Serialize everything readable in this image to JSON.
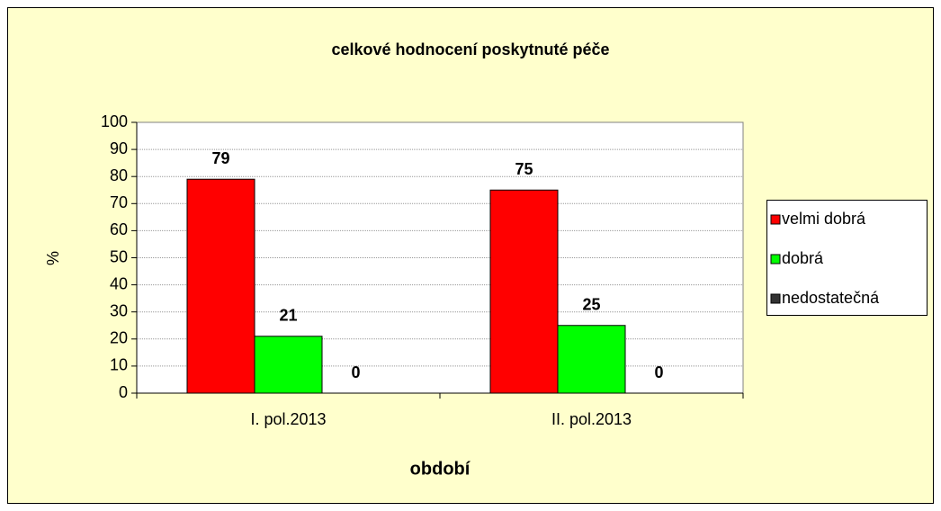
{
  "chart_data": {
    "type": "bar",
    "title": "celkové hodnocení poskytnuté péče",
    "x_label": "období",
    "y_label": "%",
    "categories": [
      "I. pol.2013",
      "II. pol.2013"
    ],
    "series": [
      {
        "name": "velmi dobrá",
        "color": "#ff0000",
        "values": [
          79,
          75
        ]
      },
      {
        "name": "dobrá",
        "color": "#00ff00",
        "values": [
          21,
          25
        ]
      },
      {
        "name": "nedostatečná",
        "color": "#333333",
        "values": [
          0,
          0
        ]
      }
    ],
    "ylim": [
      0,
      100
    ],
    "yticks": [
      0,
      10,
      20,
      30,
      40,
      50,
      60,
      70,
      80,
      90,
      100
    ],
    "grid": true,
    "legend": "right"
  }
}
